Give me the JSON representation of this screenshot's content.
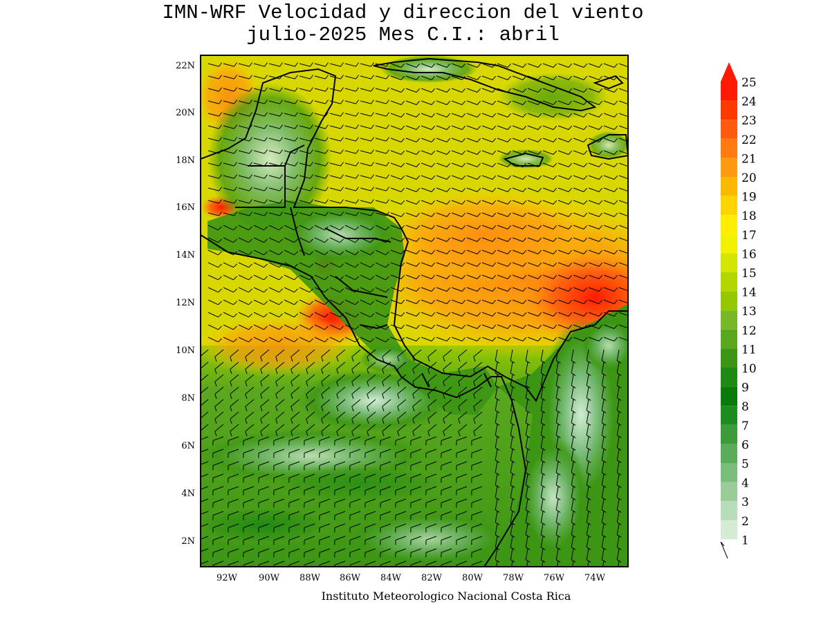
{
  "header": {
    "title_line1": "IMN-WRF Velocidad y direccion del viento",
    "title_line2": "julio-2025 Mes C.I.: abril"
  },
  "axes": {
    "lat_ticks": [
      "22N",
      "20N",
      "18N",
      "16N",
      "14N",
      "12N",
      "10N",
      "8N",
      "6N",
      "4N",
      "2N"
    ],
    "lon_ticks": [
      "92W",
      "90W",
      "88W",
      "86W",
      "84W",
      "82W",
      "80W",
      "78W",
      "76W",
      "74W"
    ]
  },
  "colorbar": {
    "labels": [
      "25",
      "24",
      "23",
      "22",
      "21",
      "20",
      "19",
      "18",
      "17",
      "16",
      "15",
      "14",
      "13",
      "12",
      "11",
      "10",
      "9",
      "8",
      "7",
      "6",
      "5",
      "4",
      "3",
      "2",
      "1"
    ],
    "colors": [
      "#ff1a00",
      "#ff3a00",
      "#ff5a10",
      "#ff7a10",
      "#ff9a10",
      "#ffb800",
      "#ffd400",
      "#ffee00",
      "#f2f200",
      "#d4e600",
      "#b4d600",
      "#96c800",
      "#78b828",
      "#5aa81e",
      "#3c9614",
      "#1e8a14",
      "#0a7a0a",
      "#1e8c1e",
      "#3c9c3c",
      "#5aac5a",
      "#7abc7a",
      "#9acc9a",
      "#b8dcb8",
      "#d4ecd4",
      "#ffffff"
    ],
    "arrow_color": "#ff1a00"
  },
  "footer": {
    "credit": "Instituto Meteorologico Nacional Costa Rica"
  },
  "colors": {
    "ocean_base": "#e0d400",
    "frame": "#000000"
  }
}
